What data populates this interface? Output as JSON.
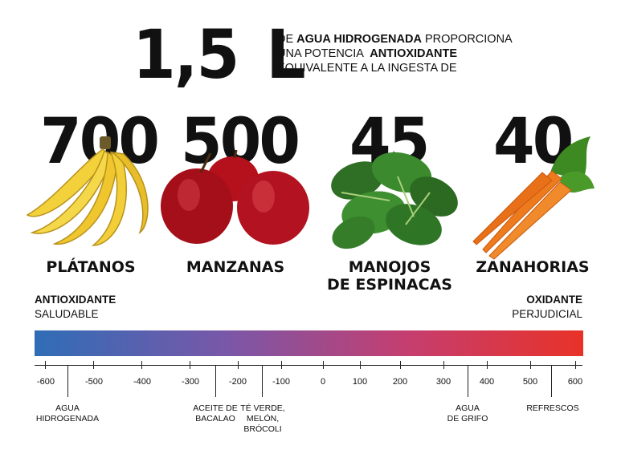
{
  "header": {
    "amount": "1,5",
    "unit": "L",
    "line1_a": "DE ",
    "line1_b": "AGUA HIDROGENADA",
    "line1_c": " PROPORCIONA",
    "line2_a": "UNA POTENCIA  ",
    "line2_b": "ANTIOXIDANTE",
    "line3": "EQUIVALENTE A LA INGESTA DE"
  },
  "foods": [
    {
      "number": "700",
      "label": "PLÁTANOS",
      "icon": "banana-icon"
    },
    {
      "number": "500",
      "label": "MANZANAS",
      "icon": "apple-icon"
    },
    {
      "number": "45",
      "label_line1": "MANOJOS",
      "label_line2": "DE ESPINACAS",
      "icon": "spinach-icon"
    },
    {
      "number": "40",
      "label": "ZANAHORIAS",
      "icon": "carrot-icon"
    }
  ],
  "scale": {
    "left_title": "ANTIOXIDANTE",
    "left_sub": "SALUDABLE",
    "right_title": "OXIDANTE",
    "right_sub": "PERJUDICIAL",
    "gradient_colors": [
      "#2f6db6",
      "#7a57a8",
      "#c53e6f",
      "#e83228"
    ],
    "ticks": [
      "-600",
      "-500",
      "-400",
      "-300",
      "-200",
      "-100",
      "0",
      "100",
      "200",
      "300",
      "400",
      "500",
      "600"
    ],
    "annotations": [
      {
        "line1": "AGUA",
        "line2": "HIDROGENADA"
      },
      {
        "line1": "ACEITE DE",
        "line2": "BACALAO"
      },
      {
        "line1": "TÉ VERDE,",
        "line2": "MELÓN,",
        "line3": "BRÓCOLI"
      },
      {
        "line1": "AGUA",
        "line2": "DE GRIFO"
      },
      {
        "line1": "REFRESCOS"
      }
    ]
  }
}
